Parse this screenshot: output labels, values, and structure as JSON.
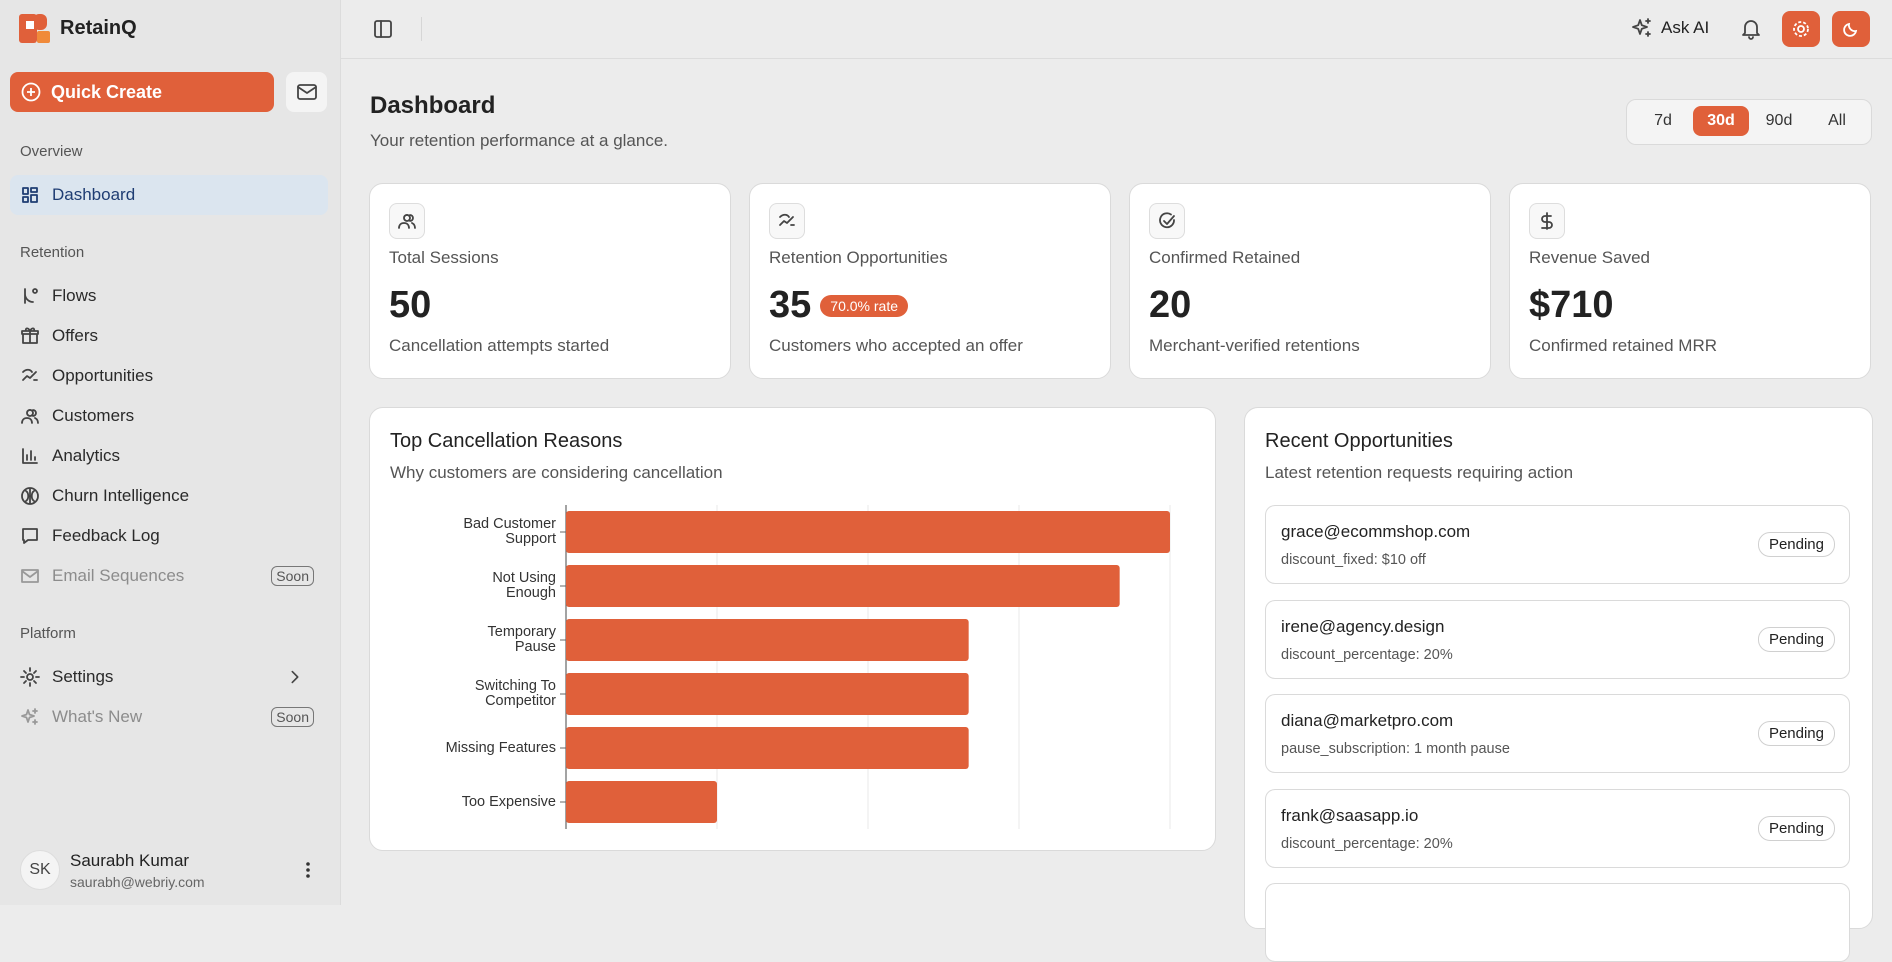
{
  "sidebar": {
    "brand": "RetainQ",
    "quick_create": "Quick Create",
    "sections": [
      {
        "title": "Overview",
        "items": [
          {
            "label": "Dashboard",
            "active": true
          }
        ]
      },
      {
        "title": "Retention",
        "items": [
          {
            "label": "Flows"
          },
          {
            "label": "Offers"
          },
          {
            "label": "Opportunities"
          },
          {
            "label": "Customers"
          },
          {
            "label": "Analytics"
          },
          {
            "label": "Churn Intelligence"
          },
          {
            "label": "Feedback Log"
          },
          {
            "label": "Email Sequences",
            "badge": "Soon"
          }
        ]
      },
      {
        "title": "Platform",
        "items": [
          {
            "label": "Settings",
            "expandable": true
          },
          {
            "label": "What's New",
            "badge": "Soon"
          }
        ]
      }
    ],
    "user": {
      "initials": "SK",
      "name": "Saurabh Kumar",
      "email": "saurabh@webriy.com"
    }
  },
  "header": {
    "ask_ai": "Ask AI"
  },
  "page": {
    "title": "Dashboard",
    "subtitle": "Your retention performance at a glance.",
    "ranges": [
      "7d",
      "30d",
      "90d",
      "All"
    ],
    "active_range": 1
  },
  "stats": [
    {
      "label": "Total Sessions",
      "value": "50",
      "caption": "Cancellation attempts started"
    },
    {
      "label": "Retention Opportunities",
      "value": "35",
      "badge": "70.0% rate",
      "caption": "Customers who accepted an offer"
    },
    {
      "label": "Confirmed Retained",
      "value": "20",
      "caption": "Merchant-verified retentions"
    },
    {
      "label": "Revenue Saved",
      "value": "$710",
      "caption": "Confirmed retained MRR"
    }
  ],
  "chart": {
    "type": "bar",
    "orientation": "horizontal",
    "title": "Top Cancellation Reasons",
    "subtitle": "Why customers are considering cancellation",
    "categories": [
      "Bad Customer Support",
      "Not Using Enough",
      "Temporary Pause",
      "Switching To Competitor",
      "Missing Features",
      "Too Expensive"
    ],
    "values": [
      12,
      11,
      8,
      8,
      8,
      3
    ],
    "color": "#e0603a",
    "xlim": [
      0,
      12
    ],
    "xticks": [
      0,
      3,
      6,
      9,
      12
    ],
    "grid": true
  },
  "recent": {
    "title": "Recent Opportunities",
    "subtitle": "Latest retention requests requiring action",
    "items": [
      {
        "email": "grace@ecommshop.com",
        "detail": "discount_fixed: $10 off",
        "status": "Pending"
      },
      {
        "email": "irene@agency.design",
        "detail": "discount_percentage: 20%",
        "status": "Pending"
      },
      {
        "email": "diana@marketpro.com",
        "detail": "pause_subscription: 1 month pause",
        "status": "Pending"
      },
      {
        "email": "frank@saasapp.io",
        "detail": "discount_percentage: 20%",
        "status": "Pending"
      }
    ]
  }
}
